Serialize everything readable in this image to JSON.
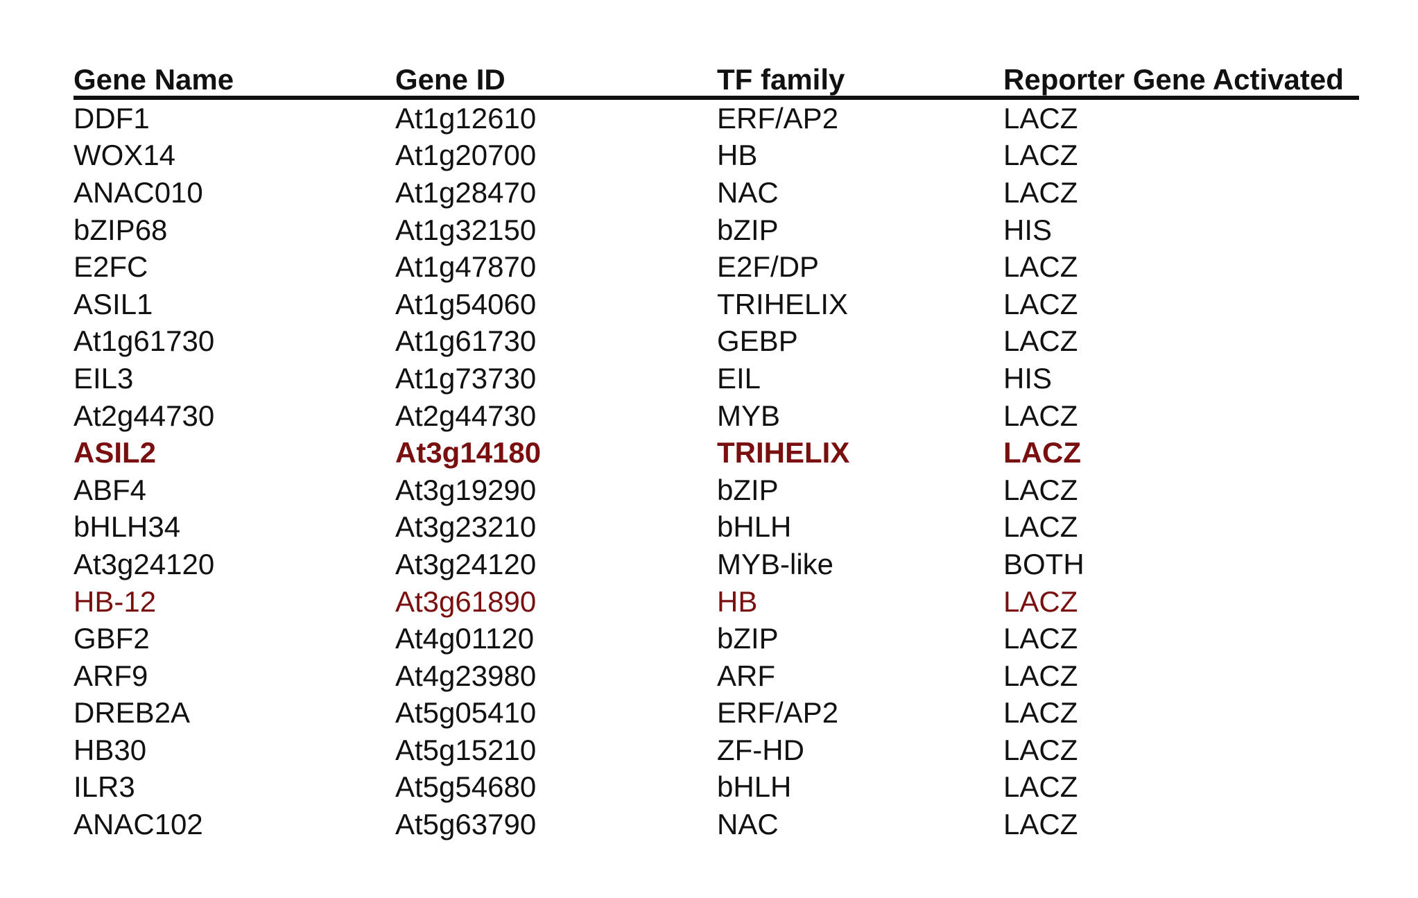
{
  "table": {
    "headers": [
      "Gene Name",
      "Gene ID",
      "TF family",
      "Reporter Gene Activated"
    ],
    "highlight_color": "#7a0f10",
    "rows": [
      {
        "name": "DDF1",
        "id": "At1g12610",
        "family": "ERF/AP2",
        "reporter": "LACZ",
        "style": ""
      },
      {
        "name": "WOX14",
        "id": "At1g20700",
        "family": "HB",
        "reporter": "LACZ",
        "style": ""
      },
      {
        "name": "ANAC010",
        "id": "At1g28470",
        "family": "NAC",
        "reporter": "LACZ",
        "style": ""
      },
      {
        "name": "bZIP68",
        "id": "At1g32150",
        "family": "bZIP",
        "reporter": "HIS",
        "style": ""
      },
      {
        "name": "E2FC",
        "id": "At1g47870",
        "family": "E2F/DP",
        "reporter": "LACZ",
        "style": ""
      },
      {
        "name": "ASIL1",
        "id": "At1g54060",
        "family": "TRIHELIX",
        "reporter": "LACZ",
        "style": ""
      },
      {
        "name": "At1g61730",
        "id": "At1g61730",
        "family": "GEBP",
        "reporter": "LACZ",
        "style": ""
      },
      {
        "name": "EIL3",
        "id": "At1g73730",
        "family": "EIL",
        "reporter": "HIS",
        "style": ""
      },
      {
        "name": "At2g44730",
        "id": "At2g44730",
        "family": "MYB",
        "reporter": "LACZ",
        "style": ""
      },
      {
        "name": "ASIL2",
        "id": "At3g14180",
        "family": "TRIHELIX",
        "reporter": "LACZ",
        "style": "hl-bold"
      },
      {
        "name": "ABF4",
        "id": "At3g19290",
        "family": "bZIP",
        "reporter": "LACZ",
        "style": ""
      },
      {
        "name": "bHLH34",
        "id": "At3g23210",
        "family": "bHLH",
        "reporter": "LACZ",
        "style": ""
      },
      {
        "name": "At3g24120",
        "id": "At3g24120",
        "family": "MYB-like",
        "reporter": "BOTH",
        "style": ""
      },
      {
        "name": "HB-12",
        "id": "At3g61890",
        "family": "HB",
        "reporter": "LACZ",
        "style": "hl"
      },
      {
        "name": "GBF2",
        "id": "At4g01120",
        "family": "bZIP",
        "reporter": "LACZ",
        "style": ""
      },
      {
        "name": "ARF9",
        "id": "At4g23980",
        "family": "ARF",
        "reporter": "LACZ",
        "style": ""
      },
      {
        "name": "DREB2A",
        "id": "At5g05410",
        "family": "ERF/AP2",
        "reporter": "LACZ",
        "style": ""
      },
      {
        "name": "HB30",
        "id": "At5g15210",
        "family": "ZF-HD",
        "reporter": "LACZ",
        "style": ""
      },
      {
        "name": "ILR3",
        "id": "At5g54680",
        "family": "bHLH",
        "reporter": "LACZ",
        "style": ""
      },
      {
        "name": "ANAC102",
        "id": "At5g63790",
        "family": "NAC",
        "reporter": "LACZ",
        "style": ""
      }
    ]
  }
}
